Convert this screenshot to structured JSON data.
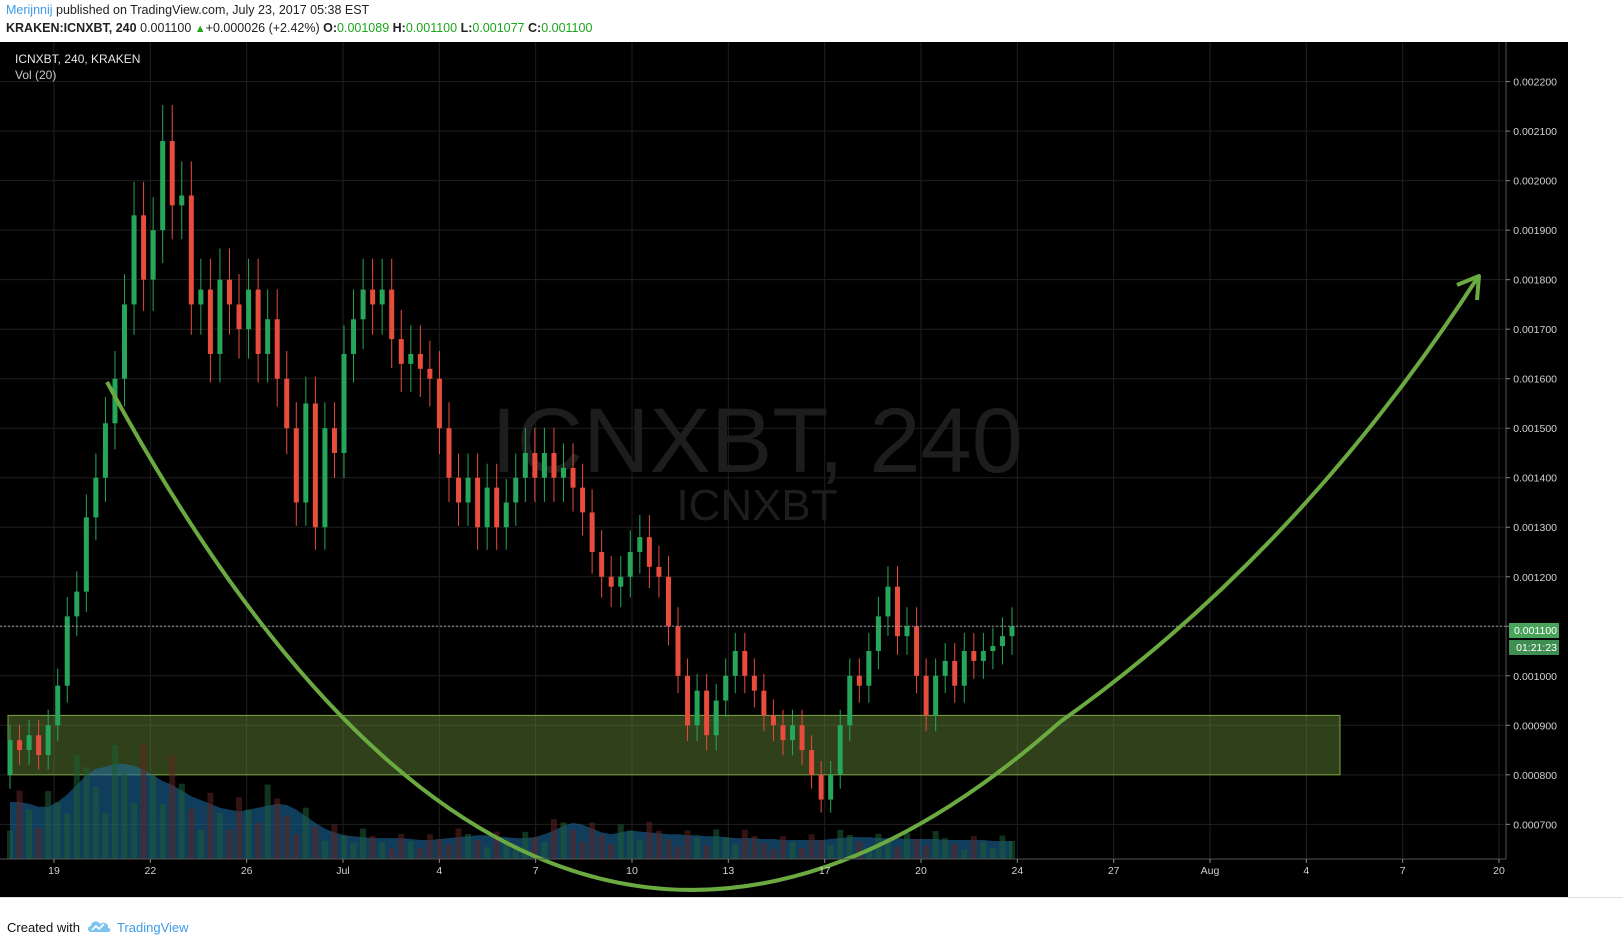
{
  "header": {
    "author": "Merijnnij",
    "published": "published on TradingView.com, July 23, 2017 05:38 EST",
    "symbol_line": "KRAKEN:ICNXBT, 240",
    "last_price": "0.001100",
    "change": "+0.000026 (+2.42%)",
    "open_label": "O:",
    "open": "0.001089",
    "high_label": "H:",
    "high": "0.001100",
    "low_label": "L:",
    "low": "0.001077",
    "close_label": "C:",
    "close": "0.001100"
  },
  "legend": {
    "symbol": "ICNXBT, 240, KRAKEN",
    "volume": "Vol (20)"
  },
  "watermark": {
    "main": "ICNXBT, 240",
    "sub": "ICNXBT"
  },
  "price_label": "0.001100",
  "countdown_label": "01:21:23",
  "footer": {
    "created_with": "Created with",
    "brand": "TradingView"
  },
  "colors": {
    "up": "#26a65b",
    "down": "#e74c3c",
    "curve": "#6aaa40",
    "zone": "#6b8f3a",
    "volume": "#1f6fa8",
    "price_tag": "#4aa35b"
  },
  "chart_data": {
    "type": "candlestick",
    "title": "ICNXBT, 240, KRAKEN",
    "ylim": [
      0.00063,
      0.00228
    ],
    "y_ticks": [
      "0.000700",
      "0.000800",
      "0.000900",
      "0.001000",
      "0.001100",
      "0.001200",
      "0.001300",
      "0.001400",
      "0.001500",
      "0.001600",
      "0.001700",
      "0.001800",
      "0.001900",
      "0.002000",
      "0.002100",
      "0.002200"
    ],
    "x_ticks": [
      "19",
      "22",
      "26",
      "Jul",
      "4",
      "7",
      "10",
      "13",
      "17",
      "20",
      "24",
      "27",
      "Aug",
      "4",
      "7",
      "20"
    ],
    "candles": [
      [
        0.0008,
        0.00087
      ],
      [
        0.00087,
        0.00085
      ],
      [
        0.00085,
        0.00088
      ],
      [
        0.00088,
        0.00084
      ],
      [
        0.00084,
        0.0009
      ],
      [
        0.0009,
        0.00098
      ],
      [
        0.00098,
        0.00112
      ],
      [
        0.00112,
        0.00117
      ],
      [
        0.00117,
        0.00132
      ],
      [
        0.00132,
        0.0014
      ],
      [
        0.0014,
        0.00151
      ],
      [
        0.00151,
        0.0016
      ],
      [
        0.0016,
        0.00175
      ],
      [
        0.00175,
        0.00193
      ],
      [
        0.00193,
        0.0018
      ],
      [
        0.0018,
        0.0019
      ],
      [
        0.0019,
        0.00208
      ],
      [
        0.00208,
        0.00195
      ],
      [
        0.00195,
        0.00197
      ],
      [
        0.00197,
        0.00175
      ],
      [
        0.00175,
        0.00178
      ],
      [
        0.00178,
        0.00165
      ],
      [
        0.00165,
        0.0018
      ],
      [
        0.0018,
        0.00175
      ],
      [
        0.00175,
        0.0017
      ],
      [
        0.0017,
        0.00178
      ],
      [
        0.00178,
        0.00165
      ],
      [
        0.00165,
        0.00172
      ],
      [
        0.00172,
        0.0016
      ],
      [
        0.0016,
        0.0015
      ],
      [
        0.0015,
        0.00135
      ],
      [
        0.00135,
        0.00155
      ],
      [
        0.00155,
        0.0013
      ],
      [
        0.0013,
        0.0015
      ],
      [
        0.0015,
        0.00145
      ],
      [
        0.00145,
        0.00165
      ],
      [
        0.00165,
        0.00172
      ],
      [
        0.00172,
        0.00178
      ],
      [
        0.00178,
        0.00175
      ],
      [
        0.00175,
        0.00178
      ],
      [
        0.00178,
        0.00168
      ],
      [
        0.00168,
        0.00163
      ],
      [
        0.00163,
        0.00165
      ],
      [
        0.00165,
        0.00162
      ],
      [
        0.00162,
        0.0016
      ],
      [
        0.0016,
        0.0015
      ],
      [
        0.0015,
        0.0014
      ],
      [
        0.0014,
        0.00135
      ],
      [
        0.00135,
        0.0014
      ],
      [
        0.0014,
        0.0013
      ],
      [
        0.0013,
        0.00138
      ],
      [
        0.00138,
        0.0013
      ],
      [
        0.0013,
        0.00135
      ],
      [
        0.00135,
        0.0014
      ],
      [
        0.0014,
        0.00145
      ],
      [
        0.00145,
        0.0014
      ],
      [
        0.0014,
        0.00145
      ],
      [
        0.00145,
        0.0014
      ],
      [
        0.0014,
        0.00142
      ],
      [
        0.00142,
        0.00138
      ],
      [
        0.00138,
        0.00133
      ],
      [
        0.00133,
        0.00125
      ],
      [
        0.00125,
        0.0012
      ],
      [
        0.0012,
        0.00118
      ],
      [
        0.00118,
        0.0012
      ],
      [
        0.0012,
        0.00125
      ],
      [
        0.00125,
        0.00128
      ],
      [
        0.00128,
        0.00122
      ],
      [
        0.00122,
        0.0012
      ],
      [
        0.0012,
        0.0011
      ],
      [
        0.0011,
        0.001
      ],
      [
        0.001,
        0.0009
      ],
      [
        0.0009,
        0.00097
      ],
      [
        0.00097,
        0.00088
      ],
      [
        0.00088,
        0.00095
      ],
      [
        0.00095,
        0.001
      ],
      [
        0.001,
        0.00105
      ],
      [
        0.00105,
        0.001
      ],
      [
        0.001,
        0.00097
      ],
      [
        0.00097,
        0.00092
      ],
      [
        0.00092,
        0.0009
      ],
      [
        0.0009,
        0.00087
      ],
      [
        0.00087,
        0.0009
      ],
      [
        0.0009,
        0.00085
      ],
      [
        0.00085,
        0.0008
      ],
      [
        0.0008,
        0.00075
      ],
      [
        0.00075,
        0.0008
      ],
      [
        0.0008,
        0.0009
      ],
      [
        0.0009,
        0.001
      ],
      [
        0.001,
        0.00098
      ],
      [
        0.00098,
        0.00105
      ],
      [
        0.00105,
        0.00112
      ],
      [
        0.00112,
        0.00118
      ],
      [
        0.00118,
        0.00108
      ],
      [
        0.00108,
        0.0011
      ],
      [
        0.0011,
        0.001
      ],
      [
        0.001,
        0.00092
      ],
      [
        0.00092,
        0.001
      ],
      [
        0.001,
        0.00103
      ],
      [
        0.00103,
        0.00098
      ],
      [
        0.00098,
        0.00105
      ],
      [
        0.00105,
        0.00103
      ],
      [
        0.00103,
        0.00105
      ],
      [
        0.00105,
        0.00106
      ],
      [
        0.00106,
        0.00108
      ],
      [
        0.00108,
        0.0011
      ]
    ],
    "volume_level": [
      0.6,
      0.6,
      0.58,
      0.55,
      0.55,
      0.6,
      0.68,
      0.78,
      0.88,
      0.95,
      0.97,
      1.0,
      1.0,
      0.98,
      0.94,
      0.88,
      0.82,
      0.78,
      0.72,
      0.66,
      0.62,
      0.58,
      0.54,
      0.52,
      0.5,
      0.52,
      0.54,
      0.56,
      0.58,
      0.57,
      0.52,
      0.45,
      0.38,
      0.32,
      0.28,
      0.25,
      0.24,
      0.23,
      0.22,
      0.22,
      0.22,
      0.22,
      0.21,
      0.2,
      0.2,
      0.21,
      0.22,
      0.23,
      0.24,
      0.25,
      0.25,
      0.24,
      0.23,
      0.22,
      0.22,
      0.23,
      0.26,
      0.3,
      0.35,
      0.38,
      0.36,
      0.32,
      0.28,
      0.26,
      0.28,
      0.3,
      0.29,
      0.28,
      0.27,
      0.26,
      0.26,
      0.25,
      0.25,
      0.24,
      0.24,
      0.23,
      0.22,
      0.22,
      0.22,
      0.21,
      0.21,
      0.2,
      0.2,
      0.2,
      0.2,
      0.2,
      0.21,
      0.22,
      0.23,
      0.23,
      0.23,
      0.22,
      0.22,
      0.22,
      0.21,
      0.21,
      0.21,
      0.21,
      0.2,
      0.2,
      0.2,
      0.2,
      0.2,
      0.19,
      0.19,
      0.19
    ],
    "support_zone": [
      0.0008,
      0.00092
    ],
    "current_price": 0.0011
  }
}
